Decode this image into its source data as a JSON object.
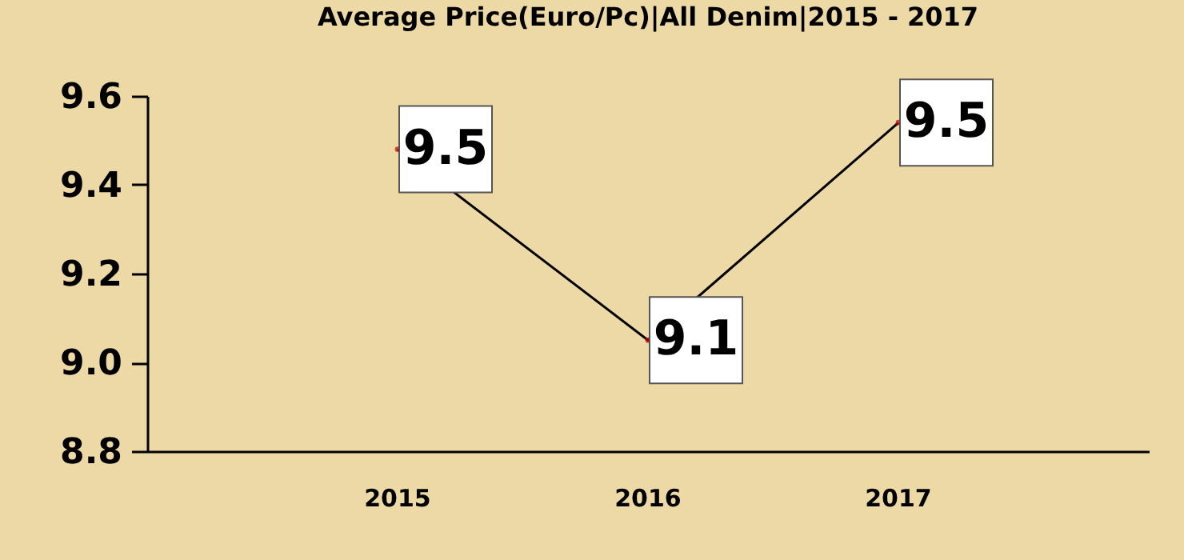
{
  "chart_data": {
    "type": "line",
    "title": "Average Price(Euro/Pc)|All Denim|2015 - 2017",
    "categories": [
      "2015",
      "2016",
      "2017"
    ],
    "series": [
      {
        "color": "#000000",
        "values": [
          9.48,
          9.05,
          9.54
        ],
        "value_labels": [
          "9.5",
          "9.1",
          "9.5"
        ]
      }
    ],
    "ylim": [
      8.8,
      9.6
    ],
    "yticks": [
      {
        "value": 8.8,
        "label": "8.8"
      },
      {
        "value": 9.0,
        "label": "9.0"
      },
      {
        "value": 9.2,
        "label": "9.2"
      },
      {
        "value": 9.4,
        "label": "9.4"
      },
      {
        "value": 9.6,
        "label": "9.6"
      }
    ],
    "marker": "circle",
    "grid": false
  }
}
